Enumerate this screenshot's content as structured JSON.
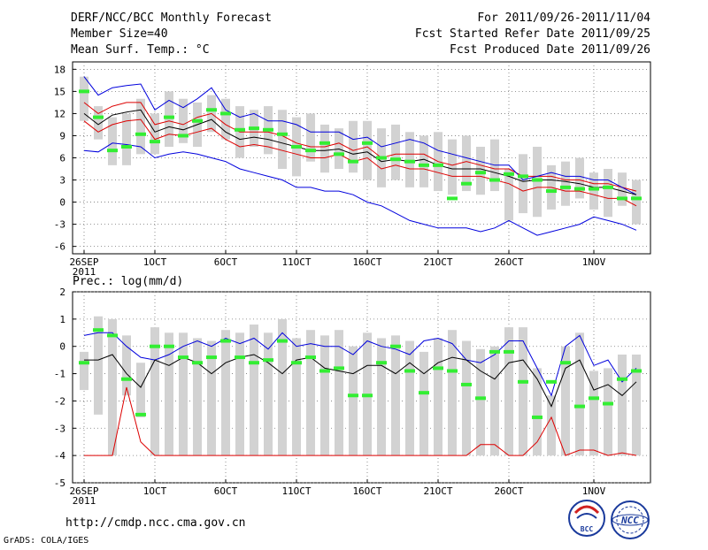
{
  "header": {
    "title": "DERF/NCC/BCC Monthly Forecast",
    "member_size": "Member Size=40",
    "variable": "Mean Surf. Temp.: °C",
    "period": "For 2011/09/26-2011/11/04",
    "started": "Fcst Started Refer Date 2011/09/25",
    "produced": "Fcst Produced Date 2011/09/26"
  },
  "footer": {
    "url": "http://cmdp.ncc.cma.gov.cn",
    "credit": "GrADS: COLA/IGES",
    "logo1_text": "BCC",
    "logo2_text": "NCC"
  },
  "colors": {
    "max_min": "#0000dd",
    "quartile": "#dd0000",
    "mean": "#000000",
    "obs": "#33ee33",
    "spread": "#d2d2d2",
    "grid": "#777777"
  },
  "chart_data": [
    {
      "type": "line",
      "title": "Mean Surf. Temp.: °C",
      "ylim": [
        -7,
        19
      ],
      "yticks": [
        18,
        15,
        12,
        9,
        6,
        3,
        0,
        -3,
        -6
      ],
      "x_tick_days": [
        0,
        5,
        10,
        15,
        20,
        25,
        30,
        36
      ],
      "x_tick_labels": [
        "26SEP",
        "1OCT",
        "6OCT",
        "11OCT",
        "16OCT",
        "21OCT",
        "26OCT",
        "1NOV"
      ],
      "year_label": "2011",
      "days": 40,
      "series": [
        {
          "name": "max",
          "values": [
            17.0,
            14.5,
            15.5,
            15.8,
            16.0,
            12.5,
            13.8,
            12.8,
            14.0,
            15.5,
            12.5,
            11.5,
            12.0,
            11.0,
            11.0,
            10.5,
            9.5,
            9.5,
            9.5,
            8.5,
            8.8,
            7.5,
            8.0,
            8.5,
            8.0,
            7.0,
            6.5,
            6.0,
            5.5,
            5.0,
            5.0,
            3.0,
            3.5,
            4.0,
            3.5,
            3.5,
            3.0,
            3.0,
            2.0,
            1.0
          ]
        },
        {
          "name": "q75",
          "values": [
            13.5,
            12.0,
            13.0,
            13.5,
            13.5,
            10.5,
            11.0,
            10.5,
            11.5,
            12.0,
            10.5,
            9.5,
            9.5,
            9.5,
            9.0,
            8.0,
            7.5,
            7.5,
            8.0,
            7.0,
            7.5,
            6.0,
            6.5,
            6.5,
            6.5,
            5.5,
            5.0,
            5.5,
            5.0,
            4.5,
            4.5,
            3.5,
            3.5,
            3.5,
            3.0,
            3.0,
            2.5,
            2.5,
            2.0,
            1.5
          ]
        },
        {
          "name": "mean",
          "values": [
            12.0,
            10.5,
            11.8,
            12.2,
            12.5,
            9.5,
            10.2,
            9.8,
            10.5,
            11.2,
            9.5,
            8.5,
            8.8,
            8.5,
            8.0,
            7.5,
            7.0,
            7.0,
            7.2,
            6.5,
            6.8,
            5.5,
            5.8,
            5.5,
            5.8,
            5.0,
            4.5,
            4.5,
            4.5,
            4.0,
            3.5,
            2.8,
            3.0,
            3.0,
            2.8,
            2.5,
            2.0,
            2.0,
            1.5,
            1.0
          ]
        },
        {
          "name": "q25",
          "values": [
            11.0,
            9.5,
            10.5,
            11.0,
            11.2,
            8.5,
            9.2,
            9.0,
            9.5,
            10.0,
            8.5,
            7.5,
            7.8,
            7.5,
            7.0,
            6.5,
            6.0,
            6.0,
            6.5,
            5.5,
            6.0,
            4.5,
            5.0,
            4.5,
            4.5,
            4.0,
            3.5,
            3.5,
            3.5,
            3.0,
            2.5,
            1.5,
            2.0,
            2.0,
            1.5,
            1.5,
            1.0,
            0.5,
            0.5,
            -0.5
          ]
        },
        {
          "name": "min",
          "values": [
            7.0,
            6.8,
            8.0,
            7.8,
            7.5,
            6.0,
            6.5,
            6.8,
            6.5,
            6.0,
            5.5,
            4.5,
            4.0,
            3.5,
            3.0,
            2.0,
            2.0,
            1.5,
            1.5,
            1.0,
            0.0,
            -0.5,
            -1.5,
            -2.5,
            -3.0,
            -3.5,
            -3.5,
            -3.5,
            -4.0,
            -3.5,
            -2.5,
            -3.5,
            -4.5,
            -4.0,
            -3.5,
            -3.0,
            -2.0,
            -2.5,
            -3.0,
            -3.8
          ]
        },
        {
          "name": "box_top",
          "values": [
            17.0,
            13.0,
            11.5,
            12.0,
            14.0,
            12.0,
            15.0,
            14.0,
            13.5,
            14.5,
            14.0,
            13.0,
            12.5,
            13.0,
            12.5,
            11.5,
            12.0,
            10.5,
            10.0,
            11.0,
            11.0,
            10.0,
            10.5,
            9.5,
            9.0,
            9.5,
            8.5,
            9.0,
            7.5,
            8.5,
            4.5,
            6.5,
            7.5,
            5.0,
            5.5,
            6.0,
            4.0,
            4.5,
            4.0,
            3.0
          ]
        },
        {
          "name": "box_bottom",
          "values": [
            11.0,
            8.5,
            5.0,
            5.0,
            6.5,
            6.5,
            7.5,
            8.0,
            7.5,
            9.5,
            8.5,
            6.0,
            7.5,
            6.5,
            4.5,
            3.5,
            5.5,
            4.0,
            4.5,
            4.0,
            3.0,
            2.0,
            3.0,
            2.0,
            2.0,
            1.5,
            1.0,
            1.5,
            1.0,
            1.5,
            -2.5,
            -1.5,
            -2.0,
            -1.0,
            -0.5,
            0.5,
            -1.0,
            -2.0,
            -0.5,
            -3.0
          ]
        },
        {
          "name": "observed",
          "values": [
            15.0,
            11.5,
            7.0,
            7.5,
            9.2,
            8.2,
            11.5,
            9.0,
            11.0,
            12.5,
            12.0,
            9.8,
            10.0,
            9.8,
            9.2,
            7.5,
            7.0,
            8.0,
            6.5,
            5.5,
            8.0,
            6.0,
            5.8,
            5.5,
            5.0,
            5.0,
            0.5,
            2.5,
            4.0,
            3.0,
            3.8,
            3.5,
            3.0,
            1.5,
            2.0,
            1.8,
            1.8,
            2.0,
            0.5,
            0.5
          ]
        }
      ]
    },
    {
      "type": "line",
      "title": "Prec.: log(mm/d)",
      "ylim": [
        -5,
        2
      ],
      "yticks": [
        2,
        1,
        0,
        -1,
        -2,
        -3,
        -4,
        -5
      ],
      "x_tick_days": [
        0,
        5,
        10,
        15,
        20,
        25,
        30,
        36
      ],
      "x_tick_labels": [
        "26SEP",
        "1OCT",
        "6OCT",
        "11OCT",
        "16OCT",
        "21OCT",
        "26OCT",
        "1NOV"
      ],
      "year_label": "2011",
      "days": 40,
      "series": [
        {
          "name": "max",
          "values": [
            0.4,
            0.5,
            0.5,
            0.0,
            -0.4,
            -0.5,
            -0.3,
            0.0,
            0.2,
            0.0,
            0.3,
            0.1,
            0.3,
            -0.1,
            0.5,
            0.0,
            0.1,
            0.0,
            0.0,
            -0.3,
            0.2,
            0.0,
            -0.1,
            -0.3,
            0.2,
            0.3,
            0.1,
            -0.5,
            -0.6,
            -0.3,
            0.2,
            0.2,
            -0.8,
            -1.8,
            0.0,
            0.4,
            -0.7,
            -0.5,
            -1.3,
            -0.8
          ]
        },
        {
          "name": "min",
          "values": [
            -4.0,
            -4.0,
            -4.0,
            -1.5,
            -3.5,
            -4.0,
            -4.0,
            -4.0,
            -4.0,
            -4.0,
            -4.0,
            -4.0,
            -4.0,
            -4.0,
            -4.0,
            -4.0,
            -4.0,
            -4.0,
            -4.0,
            -4.0,
            -4.0,
            -4.0,
            -4.0,
            -4.0,
            -4.0,
            -4.0,
            -4.0,
            -4.0,
            -3.6,
            -3.6,
            -4.0,
            -4.0,
            -3.5,
            -2.6,
            -4.0,
            -3.8,
            -3.8,
            -4.0,
            -3.9,
            -4.0
          ]
        },
        {
          "name": "mean",
          "values": [
            -0.5,
            -0.5,
            -0.3,
            -1.0,
            -1.5,
            -0.5,
            -0.7,
            -0.4,
            -0.6,
            -1.0,
            -0.6,
            -0.4,
            -0.3,
            -0.6,
            -1.0,
            -0.5,
            -0.4,
            -0.8,
            -0.9,
            -1.0,
            -0.7,
            -0.7,
            -1.0,
            -0.6,
            -1.0,
            -0.6,
            -0.4,
            -0.5,
            -0.9,
            -1.2,
            -0.6,
            -0.5,
            -1.2,
            -2.2,
            -0.8,
            -0.5,
            -1.6,
            -1.4,
            -1.8,
            -1.3
          ]
        },
        {
          "name": "box_top",
          "values": [
            -0.2,
            1.1,
            1.0,
            0.4,
            -0.6,
            0.7,
            0.5,
            0.5,
            0.3,
            0.2,
            0.6,
            0.5,
            0.8,
            0.5,
            1.0,
            0.3,
            0.6,
            0.4,
            0.6,
            0.0,
            0.5,
            0.3,
            0.4,
            0.2,
            -0.2,
            0.3,
            0.6,
            0.2,
            -0.1,
            0.0,
            0.7,
            0.7,
            -0.8,
            -1.8,
            0.0,
            0.5,
            -0.9,
            -0.8,
            -0.3,
            -0.3
          ]
        },
        {
          "name": "box_bottom",
          "values": [
            -1.6,
            -2.5,
            -4.0,
            -1.8,
            -2.6,
            -4.0,
            -4.0,
            -4.0,
            -4.0,
            -4.0,
            -4.0,
            -4.0,
            -4.0,
            -4.0,
            -4.0,
            -4.0,
            -4.0,
            -4.0,
            -4.0,
            -4.0,
            -4.0,
            -4.0,
            -4.0,
            -4.0,
            -4.0,
            -4.0,
            -4.0,
            -4.0,
            -4.0,
            -4.0,
            -4.0,
            -4.0,
            -4.0,
            -4.0,
            -4.0,
            -4.0,
            -4.0,
            -4.0,
            -4.0,
            -4.0
          ]
        },
        {
          "name": "observed",
          "values": [
            -0.6,
            0.6,
            0.4,
            -1.2,
            -2.5,
            0.0,
            0.0,
            -0.4,
            -0.6,
            -0.4,
            0.2,
            -0.4,
            -0.6,
            -0.5,
            0.2,
            -0.6,
            -0.4,
            -0.9,
            -0.8,
            -1.8,
            -1.8,
            -0.6,
            0.0,
            -0.9,
            -1.7,
            -0.8,
            -0.9,
            -1.4,
            -1.9,
            -0.2,
            -0.2,
            -1.3,
            -2.6,
            -1.3,
            -0.6,
            -2.2,
            -1.9,
            -2.1,
            -1.2,
            -0.9
          ]
        }
      ]
    }
  ]
}
